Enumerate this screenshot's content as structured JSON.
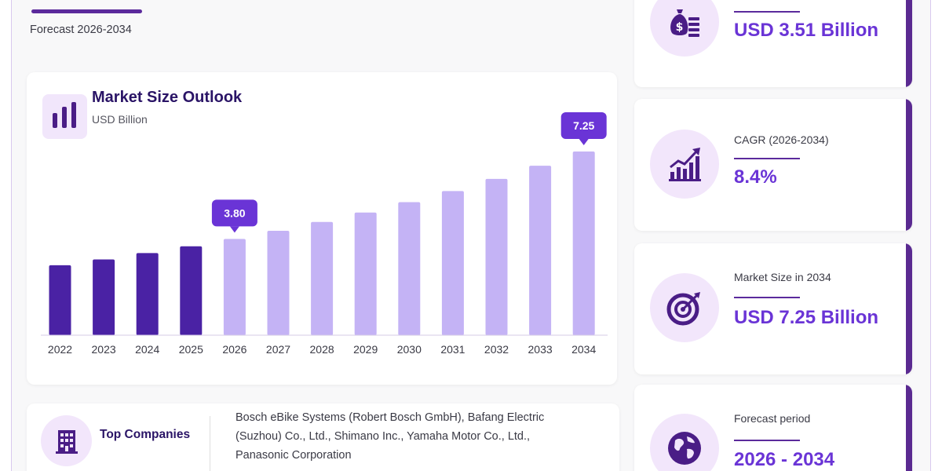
{
  "header": {
    "subtitle": "Forecast 2026-2034"
  },
  "chart_card": {
    "title": "Market Size Outlook",
    "unit": "USD Billion"
  },
  "chart_data": {
    "type": "bar",
    "title": "Market Size Outlook",
    "ylabel": "USD Billion",
    "categories": [
      "2022",
      "2023",
      "2024",
      "2025",
      "2026",
      "2027",
      "2028",
      "2029",
      "2030",
      "2031",
      "2032",
      "2033",
      "2034"
    ],
    "values": [
      2.76,
      2.99,
      3.24,
      3.51,
      3.8,
      4.12,
      4.47,
      4.84,
      5.25,
      5.69,
      6.17,
      6.69,
      7.25
    ],
    "ylim": [
      0,
      7.25
    ],
    "historical_color": "#4a22a4",
    "forecast_color": "#c4b3f5",
    "callouts": [
      {
        "category": "2026",
        "label": "3.80"
      },
      {
        "category": "2034",
        "label": "7.25"
      }
    ],
    "callout_color": "#6a34d6",
    "grid": false
  },
  "stats": [
    {
      "label": "",
      "value": "USD 3.51 Billion",
      "icon": "money-bag-icon"
    },
    {
      "label": "CAGR (2026-2034)",
      "value": "8.4%",
      "icon": "growth-chart-icon"
    },
    {
      "label": "Market Size in 2034",
      "value": "USD 7.25 Billion",
      "icon": "target-icon"
    },
    {
      "label": "Forecast period",
      "value": "2026 - 2034",
      "icon": "globe-icon"
    }
  ],
  "companies": {
    "heading": "Top Companies",
    "lines": [
      "Bosch eBike Systems (Robert Bosch GmbH), Bafang Electric",
      "(Suzhou) Co., Ltd., Shimano Inc., Yamaha Motor Co., Ltd.,",
      "Panasonic Corporation"
    ],
    "icon": "building-icon"
  },
  "colors": {
    "accent": "#6a34d6",
    "dark": "#5a2a91",
    "icon_bg": "#f2e6fb"
  }
}
